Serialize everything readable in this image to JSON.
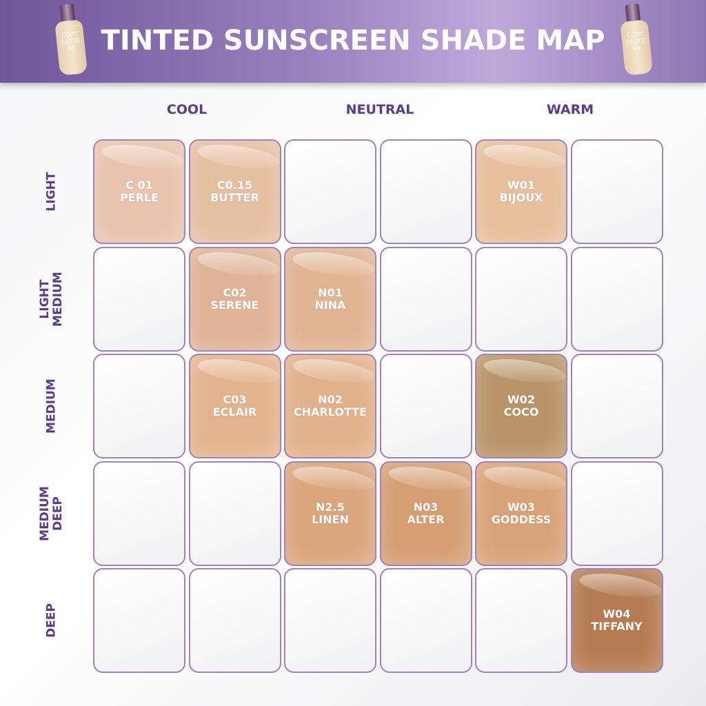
{
  "title": "TINTED SUNSCREEN SHADE MAP",
  "logo_text": "COPY PASTE 40",
  "columns": [
    "COOL",
    "NEUTRAL",
    "WARM"
  ],
  "rows": [
    [
      "LIGHT"
    ],
    [
      "LIGHT",
      "MEDIUM"
    ],
    [
      "MEDIUM"
    ],
    [
      "MEDIUM",
      "DEEP"
    ],
    [
      "DEEP"
    ]
  ],
  "shades": [
    {
      "row": 0,
      "col": 0,
      "code": "C 01",
      "name": "PERLE",
      "color": "#e9c3ae"
    },
    {
      "row": 0,
      "col": 1,
      "code": "C0.15",
      "name": "BUTTER",
      "color": "#e5bfa2"
    },
    {
      "row": 0,
      "col": 4,
      "code": "W01",
      "name": "BIJOUX",
      "color": "#e7bf9d"
    },
    {
      "row": 1,
      "col": 1,
      "code": "C02",
      "name": "SERENE",
      "color": "#dfb397"
    },
    {
      "row": 1,
      "col": 2,
      "code": "N01",
      "name": "NINA",
      "color": "#e0b493"
    },
    {
      "row": 2,
      "col": 1,
      "code": "C03",
      "name": "ECLAIR",
      "color": "#e3b38d"
    },
    {
      "row": 2,
      "col": 2,
      "code": "N02",
      "name": "CHARLOTTE",
      "color": "#e1b18b"
    },
    {
      "row": 2,
      "col": 4,
      "code": "W02",
      "name": "COCO",
      "color": "#b99468"
    },
    {
      "row": 3,
      "col": 2,
      "code": "N2.5",
      "name": "LINEN",
      "color": "#daa57c"
    },
    {
      "row": 3,
      "col": 3,
      "code": "N03",
      "name": "ALTER",
      "color": "#d59e73"
    },
    {
      "row": 3,
      "col": 4,
      "code": "W03",
      "name": "GODDESS",
      "color": "#d8a379"
    },
    {
      "row": 4,
      "col": 5,
      "code": "W04",
      "name": "TIFFANY",
      "color": "#b57c53"
    }
  ]
}
